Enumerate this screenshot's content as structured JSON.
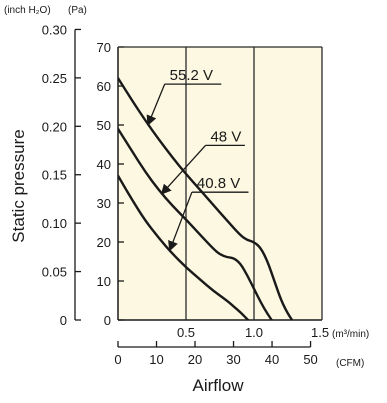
{
  "chart_data": {
    "type": "line",
    "ylabel": "Static pressure",
    "xlabel": "Airflow",
    "unit_labels": {
      "inch_h2o": "(inch H₂O)",
      "pa": "(Pa)",
      "m3min": "(m³/min)",
      "cfm": "(CFM)"
    },
    "x_m3min": {
      "range": [
        0,
        1.5
      ],
      "ticks": [
        0.5,
        1.0,
        1.5
      ],
      "tick_labels": [
        "0.5",
        "1.0",
        "1.5"
      ]
    },
    "y_pa": {
      "range": [
        0,
        70
      ],
      "ticks": [
        0,
        10,
        20,
        30,
        40,
        50,
        60,
        70
      ],
      "tick_labels": [
        "0",
        "10",
        "20",
        "30",
        "40",
        "50",
        "60",
        "70"
      ]
    },
    "y_inch_h2o": {
      "ticks": [
        0,
        0.05,
        0.1,
        0.15,
        0.2,
        0.25,
        0.3
      ],
      "tick_labels": [
        "0",
        "0.05",
        "0.10",
        "0.15",
        "0.20",
        "0.25",
        "0.30"
      ]
    },
    "x_cfm": {
      "ticks": [
        0,
        10,
        20,
        30,
        40,
        50
      ],
      "tick_labels": [
        "0",
        "10",
        "20",
        "30",
        "40",
        "50"
      ]
    },
    "grid": true,
    "background": "#fcf8e1",
    "line_color": "#1a1a1a",
    "series": [
      {
        "name": "55.2 V",
        "x": [
          0,
          0.1,
          0.2,
          0.3,
          0.4,
          0.5,
          0.6,
          0.7,
          0.8,
          0.9,
          0.95,
          1.0,
          1.05,
          1.1,
          1.15,
          1.2,
          1.25,
          1.3,
          1.33
        ],
        "y": [
          62.0,
          56.5,
          51.2,
          46.3,
          41.7,
          37.4,
          33.5,
          29.5,
          25.6,
          21.7,
          20.5,
          20.0,
          18.5,
          15.0,
          10.0,
          5.0,
          1.5,
          -1.0,
          -3.0
        ]
      },
      {
        "name": "48 V",
        "x": [
          0,
          0.1,
          0.2,
          0.3,
          0.4,
          0.5,
          0.6,
          0.7,
          0.75,
          0.8,
          0.85,
          0.9,
          0.95,
          1.0,
          1.05,
          1.1,
          1.15,
          1.2
        ],
        "y": [
          49.0,
          43.5,
          38.0,
          33.3,
          29.3,
          25.8,
          22.0,
          18.3,
          16.8,
          16.1,
          15.9,
          14.5,
          11.5,
          8.0,
          4.5,
          1.5,
          -1.0,
          -3.0
        ]
      },
      {
        "name": "40.8 V",
        "x": [
          0,
          0.1,
          0.2,
          0.3,
          0.4,
          0.5,
          0.6,
          0.7,
          0.8,
          0.85,
          0.9,
          0.95,
          1.0,
          1.05
        ],
        "y": [
          37.0,
          31.0,
          25.5,
          21.0,
          17.0,
          13.5,
          10.5,
          7.5,
          5.0,
          3.5,
          2.0,
          0.2,
          -1.5,
          -3.0
        ]
      }
    ],
    "annotations": [
      {
        "text": "55.2 V",
        "pointer_to": [
          0.22,
          50.0
        ],
        "label_at": [
          0.38,
          61.5
        ]
      },
      {
        "text": "48 V",
        "pointer_to": [
          0.32,
          32.3
        ],
        "label_at": [
          0.68,
          45.8
        ]
      },
      {
        "text": "40.8 V",
        "pointer_to": [
          0.38,
          17.8
        ],
        "label_at": [
          0.58,
          33.8
        ]
      }
    ]
  }
}
